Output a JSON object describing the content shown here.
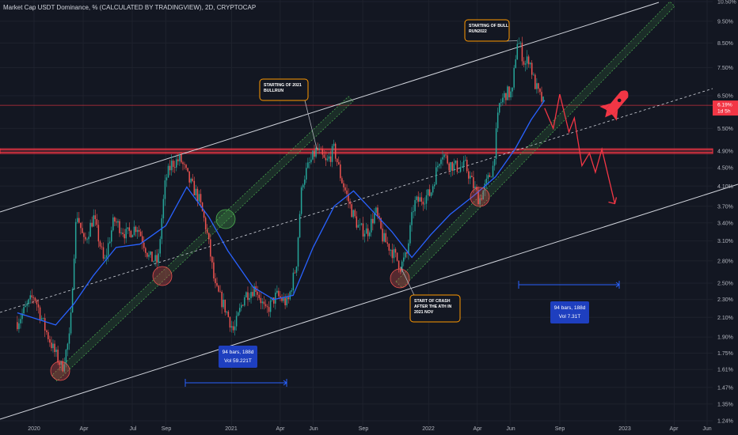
{
  "header": {
    "title": "Market Cap USDT Dominance, % (CALCULATED BY TRADINGVIEW), 2D, CRYPTOCAP"
  },
  "colors": {
    "background": "#131722",
    "up": "#26a69a",
    "down": "#ef5350",
    "ma": "#2962ff",
    "channel": "#d1d4dc",
    "support_trend": "#4caf50",
    "resistance_zone": "#f23645",
    "annotation_border": "#ff9800",
    "projection": "#f23645",
    "measure": "#2962ff"
  },
  "chart_data": {
    "type": "candlestick",
    "symbol": "Market Cap USDT Dominance, %",
    "interval": "2D",
    "y_scale": "log",
    "y_range": [
      1.24,
      10.5
    ],
    "y_ticks": [
      "10.50%",
      "9.50%",
      "8.50%",
      "7.50%",
      "6.50%",
      "5.50%",
      "4.90%",
      "4.50%",
      "4.10%",
      "3.70%",
      "3.40%",
      "3.10%",
      "2.80%",
      "2.50%",
      "2.30%",
      "2.10%",
      "1.90%",
      "1.75%",
      "1.61%",
      "1.47%",
      "1.35%",
      "1.24%"
    ],
    "x_ticks": [
      "2020",
      "Apr",
      "Jul",
      "Sep",
      "2021",
      "Apr",
      "Jun",
      "Sep",
      "2022",
      "Apr",
      "Jun",
      "Sep",
      "2023",
      "Apr",
      "Jun"
    ],
    "last_price": "6.19%",
    "countdown": "1d 5h",
    "resistance_level": "4.90%",
    "price_path": [
      [
        "2019-12-01",
        2.05
      ],
      [
        "2020-01-01",
        2.35
      ],
      [
        "2020-01-20",
        2.0
      ],
      [
        "2020-02-06",
        1.78
      ],
      [
        "2020-02-22",
        1.62
      ],
      [
        "2020-03-08",
        1.92
      ],
      [
        "2020-03-20",
        3.6
      ],
      [
        "2020-04-03",
        3.05
      ],
      [
        "2020-04-20",
        3.5
      ],
      [
        "2020-05-10",
        2.75
      ],
      [
        "2020-05-28",
        3.45
      ],
      [
        "2020-06-20",
        3.2
      ],
      [
        "2020-07-10",
        3.35
      ],
      [
        "2020-08-01",
        2.85
      ],
      [
        "2020-08-18",
        2.78
      ],
      [
        "2020-09-01",
        4.25
      ],
      [
        "2020-09-12",
        4.6
      ],
      [
        "2020-09-28",
        4.7
      ],
      [
        "2020-10-15",
        4.2
      ],
      [
        "2020-11-01",
        3.85
      ],
      [
        "2020-11-15",
        3.3
      ],
      [
        "2020-12-01",
        2.45
      ],
      [
        "2020-12-20",
        2.2
      ],
      [
        "2021-01-05",
        1.95
      ],
      [
        "2021-01-25",
        2.35
      ],
      [
        "2021-02-15",
        2.45
      ],
      [
        "2021-03-05",
        2.15
      ],
      [
        "2021-03-25",
        2.35
      ],
      [
        "2021-04-15",
        2.25
      ],
      [
        "2021-05-01",
        2.75
      ],
      [
        "2021-05-12",
        4.2
      ],
      [
        "2021-05-22",
        4.5
      ],
      [
        "2021-06-08",
        4.95
      ],
      [
        "2021-06-25",
        4.6
      ],
      [
        "2021-07-10",
        4.95
      ],
      [
        "2021-07-22",
        4.3
      ],
      [
        "2021-08-10",
        3.65
      ],
      [
        "2021-08-25",
        3.3
      ],
      [
        "2021-09-10",
        3.25
      ],
      [
        "2021-09-25",
        3.6
      ],
      [
        "2021-10-08",
        3.15
      ],
      [
        "2021-10-25",
        2.95
      ],
      [
        "2021-11-10",
        2.72
      ],
      [
        "2021-11-22",
        2.9
      ],
      [
        "2021-12-05",
        3.75
      ],
      [
        "2021-12-20",
        3.85
      ],
      [
        "2022-01-05",
        3.95
      ],
      [
        "2022-01-25",
        4.9
      ],
      [
        "2022-02-08",
        4.6
      ],
      [
        "2022-02-25",
        4.5
      ],
      [
        "2022-03-10",
        4.55
      ],
      [
        "2022-03-25",
        4.1
      ],
      [
        "2022-04-05",
        3.82
      ],
      [
        "2022-04-20",
        4.2
      ],
      [
        "2022-05-01",
        4.55
      ],
      [
        "2022-05-12",
        6.2
      ],
      [
        "2022-05-25",
        6.6
      ],
      [
        "2022-06-05",
        6.55
      ],
      [
        "2022-06-14",
        8.6
      ],
      [
        "2022-06-20",
        8.3
      ],
      [
        "2022-06-28",
        7.6
      ],
      [
        "2022-07-06",
        7.9
      ],
      [
        "2022-07-15",
        7.0
      ],
      [
        "2022-07-25",
        6.5
      ],
      [
        "2022-08-04",
        6.19
      ]
    ],
    "moving_average": [
      [
        "2019-12-01",
        2.15
      ],
      [
        "2020-02-10",
        2.02
      ],
      [
        "2020-03-15",
        2.25
      ],
      [
        "2020-04-20",
        2.6
      ],
      [
        "2020-06-01",
        3.0
      ],
      [
        "2020-07-15",
        3.05
      ],
      [
        "2020-09-01",
        3.35
      ],
      [
        "2020-10-10",
        4.08
      ],
      [
        "2020-11-20",
        3.5
      ],
      [
        "2020-12-25",
        2.95
      ],
      [
        "2021-02-10",
        2.45
      ],
      [
        "2021-03-20",
        2.3
      ],
      [
        "2021-04-25",
        2.35
      ],
      [
        "2021-06-01",
        3.0
      ],
      [
        "2021-07-10",
        3.7
      ],
      [
        "2021-08-15",
        4.0
      ],
      [
        "2021-09-20",
        3.6
      ],
      [
        "2021-10-25",
        3.25
      ],
      [
        "2021-12-01",
        2.85
      ],
      [
        "2022-01-05",
        3.2
      ],
      [
        "2022-02-10",
        3.55
      ],
      [
        "2022-03-25",
        3.9
      ],
      [
        "2022-05-05",
        4.3
      ],
      [
        "2022-06-10",
        4.95
      ],
      [
        "2022-07-10",
        5.75
      ],
      [
        "2022-08-04",
        6.35
      ]
    ],
    "projection": [
      [
        "2022-08-04",
        6.1
      ],
      [
        "2022-08-20",
        5.5
      ],
      [
        "2022-09-01",
        6.55
      ],
      [
        "2022-09-18",
        5.4
      ],
      [
        "2022-09-28",
        5.8
      ],
      [
        "2022-10-12",
        4.55
      ],
      [
        "2022-10-26",
        4.85
      ],
      [
        "2022-11-06",
        4.4
      ],
      [
        "2022-11-18",
        4.95
      ],
      [
        "2022-12-12",
        3.75
      ]
    ],
    "annotations": [
      {
        "text": [
          "STARTING OF BULL",
          "RUN2022"
        ],
        "date": "2022-06-14",
        "value": 8.6
      },
      {
        "text": [
          "STARTING OF 2021",
          "BULLRUN"
        ],
        "date": "2021-06-08",
        "value": 4.95
      },
      {
        "text": [
          "START OF CRASH",
          "AFTER THE ATH IN",
          "2021 NOV"
        ],
        "date": "2021-11-10",
        "value": 2.72
      }
    ],
    "measure_boxes": [
      {
        "lines": [
          "94 bars, 188d",
          "Vol 59.221T"
        ]
      },
      {
        "lines": [
          "94 bars, 188d",
          "Vol 7.31T"
        ]
      }
    ]
  }
}
